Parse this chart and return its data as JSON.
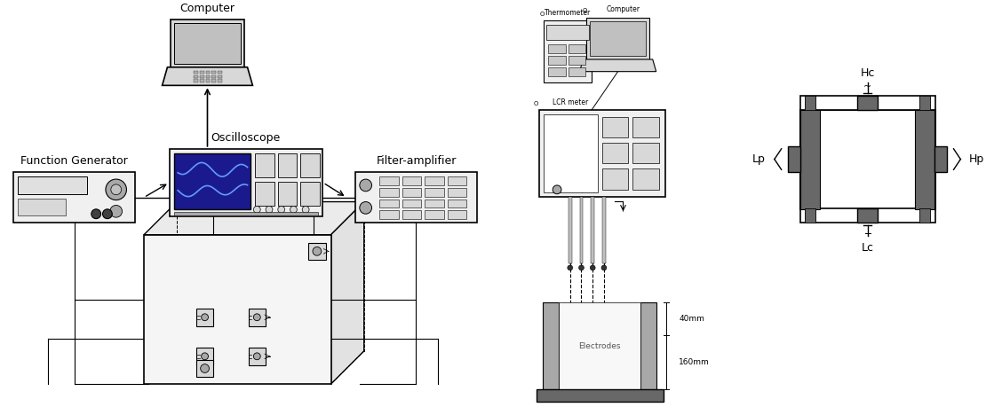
{
  "bg_color": "#ffffff",
  "line_color": "#000000",
  "gray_light": "#d8d8d8",
  "gray_medium": "#a8a8a8",
  "gray_dark": "#686868",
  "blue_screen": "#1a1a8c",
  "blue_wave": "#4444cc",
  "text_color": "#333333",
  "left": {
    "computer_label": "Computer",
    "oscilloscope_label": "Oscilloscope",
    "function_gen_label": "Function Generator",
    "filter_amp_label": "Filter-amplifier"
  },
  "right": {
    "thermometer_label": "Thermometer",
    "computer_label": "Computer",
    "lcr_meter_label": "LCR meter",
    "electrodes_label": "Electrodes",
    "dim1_label": "40mm",
    "dim2_label": "160mm",
    "hc_label": "Hc",
    "hp_label": "Hp",
    "lp_label": "Lp",
    "lc_label": "Lc"
  }
}
